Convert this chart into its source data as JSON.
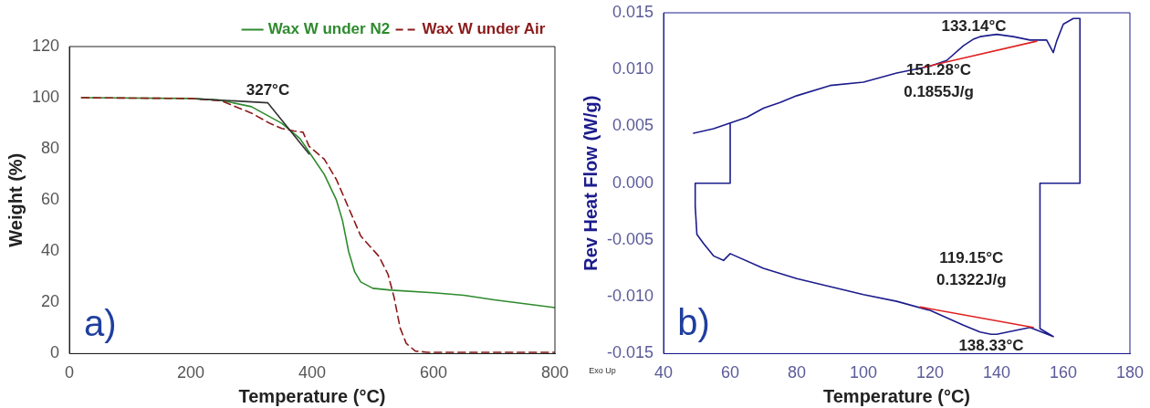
{
  "chart_data": [
    {
      "type": "line",
      "xlabel": "Temperature (°C)",
      "ylabel": "Weight (%)",
      "xlim": [
        0,
        800
      ],
      "xticks": [
        0,
        200,
        400,
        600,
        800
      ],
      "ylim": [
        0,
        120
      ],
      "yticks": [
        0,
        20,
        40,
        60,
        80,
        100,
        120
      ],
      "legend": "top right",
      "grid": false,
      "marker": "none",
      "series": [
        {
          "name": "Wax W under N2",
          "color": "#2e8b2e",
          "line_style": "solid",
          "x": [
            20,
            200,
            250,
            300,
            350,
            380,
            400,
            420,
            440,
            450,
            460,
            470,
            480,
            500,
            530,
            600,
            650,
            700,
            750,
            800
          ],
          "values": [
            100,
            99.7,
            99,
            96.5,
            90,
            84,
            77,
            70,
            60,
            52,
            40,
            32,
            28,
            25.5,
            24.8,
            23.8,
            22.8,
            21,
            19.5,
            18
          ]
        },
        {
          "name": "Wax W under Air",
          "color": "#8b1a1a",
          "line_style": "dashed",
          "x": [
            20,
            200,
            250,
            300,
            330,
            350,
            370,
            385,
            395,
            405,
            420,
            440,
            460,
            480,
            495,
            510,
            525,
            535,
            545,
            555,
            570,
            590,
            800
          ],
          "values": [
            100,
            99.7,
            98.8,
            94,
            90,
            88,
            87,
            86.5,
            81,
            79,
            76,
            68,
            57,
            46,
            42,
            38,
            31,
            22,
            10,
            4,
            1,
            0.5,
            0.5
          ]
        },
        {
          "color": "#333333",
          "line_style": "solid",
          "x": [
            210,
            327,
            395
          ],
          "values": [
            99.6,
            98,
            78
          ]
        }
      ],
      "annotations": [
        {
          "text": "327°C",
          "x": 327,
          "y": 98
        },
        "a)"
      ]
    },
    {
      "type": "line",
      "xlabel": "Temperature (°C)",
      "ylabel": "Rev Heat Flow (W/g)",
      "xlim": [
        40,
        180
      ],
      "xticks": [
        40,
        60,
        80,
        100,
        120,
        140,
        160,
        180
      ],
      "ylim": [
        -0.015,
        0.015
      ],
      "yticks": [
        {
          "value": -0.015,
          "label": "-0.015"
        },
        {
          "value": -0.01,
          "label": "-0.010"
        },
        {
          "value": -0.005,
          "label": "-0.005"
        },
        {
          "value": 0,
          "label": "0.000"
        },
        {
          "value": 0.005,
          "label": "0.005"
        },
        {
          "value": 0.01,
          "label": "0.010"
        },
        {
          "value": 0.015,
          "label": "0.015"
        }
      ],
      "legend": false,
      "grid": false,
      "marker": "none",
      "series": [
        {
          "color": "#1c1c8c",
          "line_style": "solid",
          "x": [
            49,
            55,
            60,
            65,
            70,
            75,
            80,
            90,
            100,
            105,
            110,
            120,
            125,
            130,
            133.14,
            135,
            140,
            145,
            150,
            155,
            157,
            158,
            160,
            163,
            165,
            165,
            153,
            153,
            157,
            150,
            140,
            138.33,
            135,
            130,
            120,
            110,
            100,
            90,
            80,
            70,
            60,
            58,
            55,
            52,
            50,
            49.5,
            49.5,
            60,
            60
          ],
          "values": [
            0.0044,
            0.0048,
            0.0053,
            0.0058,
            0.0066,
            0.0071,
            0.0077,
            0.0086,
            0.0089,
            0.0093,
            0.0097,
            0.0103,
            0.0108,
            0.0121,
            0.0127,
            0.0129,
            0.0131,
            0.0129,
            0.0126,
            0.0126,
            0.0115,
            0.0125,
            0.014,
            0.0145,
            0.0145,
            0,
            0,
            -0.0128,
            -0.0135,
            -0.0127,
            -0.0133,
            -0.0133,
            -0.0131,
            -0.0125,
            -0.0112,
            -0.0104,
            -0.0098,
            -0.0091,
            -0.0084,
            -0.0075,
            -0.0062,
            -0.0068,
            -0.0064,
            -0.0053,
            -0.0045,
            -0.002,
            0,
            0,
            0.0053
          ]
        },
        {
          "color": "#e02020",
          "line_style": "solid",
          "x": [
            118,
            152
          ],
          "values": [
            0.0102,
            0.0125
          ]
        },
        {
          "color": "#e02020",
          "line_style": "solid",
          "x": [
            117,
            151
          ],
          "values": [
            -0.0109,
            -0.0127
          ]
        }
      ],
      "annotations": [
        {
          "text": "133.14°C",
          "x": 133.14,
          "y": 0.0127
        },
        "151.28°C",
        "0.1855J/g",
        "119.15°C",
        "0.1322J/g",
        {
          "text": "138.33°C",
          "x": 138.33,
          "y": -0.0133
        },
        "b)",
        "Exo Up"
      ]
    }
  ]
}
